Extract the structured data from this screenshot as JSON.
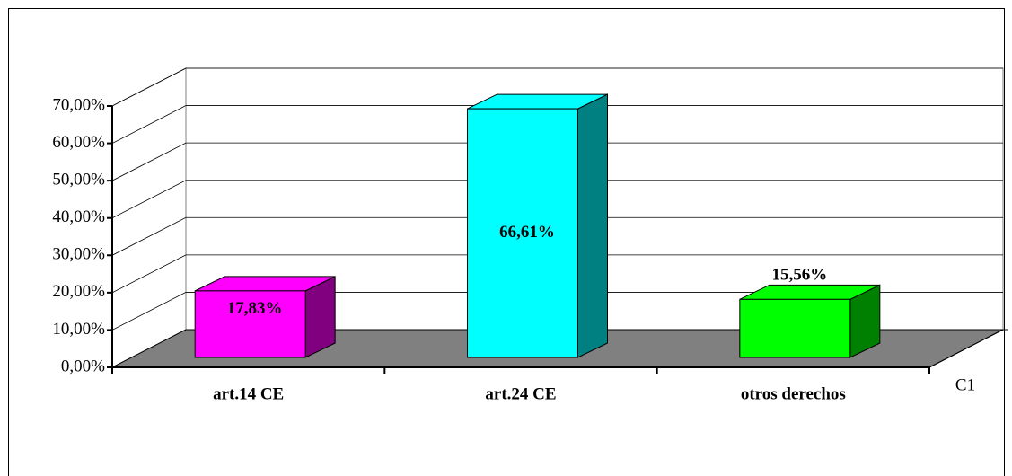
{
  "chart_data": {
    "type": "bar",
    "categories": [
      "art.14 CE",
      "art.24 CE",
      "otros derechos"
    ],
    "series": [
      {
        "name": "C1",
        "values": [
          17.83,
          66.61,
          15.56
        ],
        "value_labels": [
          "17,83%",
          "66,61%",
          "15,56%"
        ]
      }
    ],
    "colors": [
      "#ff00ff",
      "#00ffff",
      "#00ff00"
    ],
    "side_colors": [
      "#800080",
      "#008080",
      "#008000"
    ],
    "ylim": [
      0,
      70
    ],
    "yticks": [
      {
        "value": 0,
        "label": "0,00%"
      },
      {
        "value": 10,
        "label": "10,00%"
      },
      {
        "value": 20,
        "label": "20,00%"
      },
      {
        "value": 30,
        "label": "30,00%"
      },
      {
        "value": 40,
        "label": "40,00%"
      },
      {
        "value": 50,
        "label": "50,00%"
      },
      {
        "value": 60,
        "label": "60,00%"
      },
      {
        "value": 70,
        "label": "70,00%"
      }
    ],
    "grid": true
  }
}
